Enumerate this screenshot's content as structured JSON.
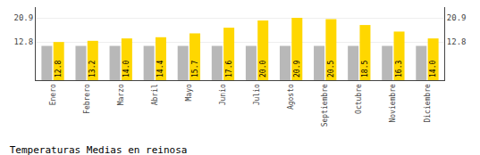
{
  "chart_data": {
    "type": "bar",
    "title": "Temperaturas Medias en reinosa",
    "categories": [
      "Enero",
      "Febrero",
      "Marzo",
      "Abril",
      "Mayo",
      "Junio",
      "Julio",
      "Agosto",
      "Septiembre",
      "Octubre",
      "Noviembre",
      "Diciembre"
    ],
    "series": [
      {
        "color": "#B8B8B8",
        "values": [
          11.5,
          11.5,
          11.5,
          11.5,
          11.5,
          11.5,
          11.5,
          11.5,
          11.5,
          11.5,
          11.5,
          11.5
        ]
      },
      {
        "color": "#FFD700",
        "values": [
          12.8,
          13.2,
          14.0,
          14.4,
          15.7,
          17.6,
          20.0,
          20.9,
          20.5,
          18.5,
          16.3,
          14.0
        ],
        "data_labels": true,
        "value_labels": [
          "12.8",
          "13.2",
          "14.0",
          "14.4",
          "15.7",
          "17.6",
          "20.0",
          "20.9",
          "20.5",
          "18.5",
          "16.3",
          "14.0"
        ]
      }
    ],
    "ylim": [
      0,
      24.5
    ],
    "yticks": [
      12.8,
      20.9
    ],
    "y2lim": [
      0,
      24.5
    ],
    "y2ticks": [
      12.8,
      20.9
    ],
    "grid": true
  }
}
